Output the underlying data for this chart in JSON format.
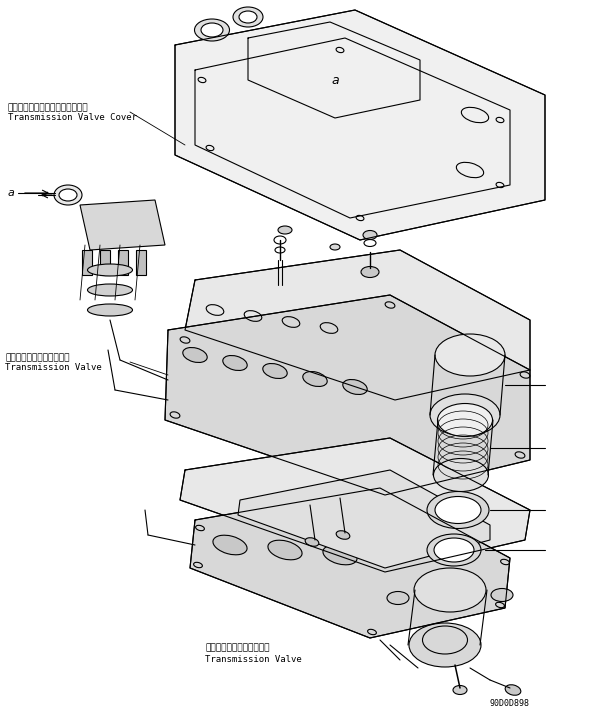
{
  "title": "",
  "bg_color": "#ffffff",
  "labels": {
    "label1_ja": "トランスミッションバルブカバー",
    "label1_en": "Transmission Valve Cover",
    "label2_ja": "トランスミッションバルブ",
    "label2_en": "Transmission Valve",
    "label3_ja": "トランスミッションバルブ",
    "label3_en": "Transmission Valve",
    "watermark": "90D0D898"
  },
  "figsize": [
    5.9,
    7.11
  ],
  "dpi": 100
}
